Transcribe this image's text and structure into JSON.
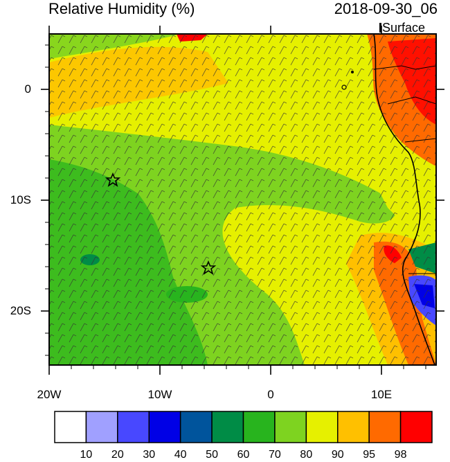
{
  "title_left": "Relative Humidity (%)",
  "title_right": "2018-09-30_06",
  "level_label": "Surface",
  "axes": {
    "lat_labels": [
      "0",
      "10S",
      "20S"
    ],
    "lon_labels": [
      "20W",
      "10W",
      "0",
      "10E"
    ]
  },
  "map_data": {
    "variable": "Relative Humidity",
    "units": "%",
    "lon_range": [
      -20,
      15
    ],
    "lat_range": [
      -25,
      5
    ],
    "markers": [
      {
        "type": "star",
        "lon": -14.2,
        "lat": -8.0
      },
      {
        "type": "star",
        "lon": -5.6,
        "lat": -16.0
      }
    ]
  },
  "colorbar": {
    "colors": [
      "#ffffff",
      "#a0a0ff",
      "#4848ff",
      "#0000e6",
      "#00549c",
      "#008c46",
      "#28b41e",
      "#7ed320",
      "#e6f000",
      "#ffc000",
      "#ff6a00",
      "#ff0000"
    ],
    "labels": [
      "10",
      "20",
      "30",
      "40",
      "50",
      "60",
      "70",
      "80",
      "90",
      "95",
      "98"
    ]
  }
}
